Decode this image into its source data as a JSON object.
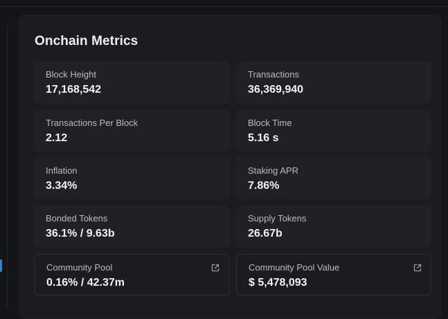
{
  "section": {
    "title": "Onchain Metrics"
  },
  "metrics": [
    {
      "label": "Block Height",
      "value": "17,168,542"
    },
    {
      "label": "Transactions",
      "value": "36,369,940"
    },
    {
      "label": "Transactions Per Block",
      "value": "2.12"
    },
    {
      "label": "Block Time",
      "value": "5.16 s"
    },
    {
      "label": "Inflation",
      "value": "3.34%"
    },
    {
      "label": "Staking APR",
      "value": "7.86%"
    },
    {
      "label": "Bonded Tokens",
      "value": "36.1% / 9.63b"
    },
    {
      "label": "Supply Tokens",
      "value": "26.67b"
    },
    {
      "label": "Community Pool",
      "value": "0.16% / 42.37m",
      "icon": "external-link-icon"
    },
    {
      "label": "Community Pool Value",
      "value": "$ 5,478,093",
      "icon": "external-link-icon"
    }
  ],
  "colors": {
    "background": "#141518",
    "panel": "#1b1c20",
    "card": "#202126",
    "label": "#b9bcc3",
    "value": "#f1f2f4"
  }
}
